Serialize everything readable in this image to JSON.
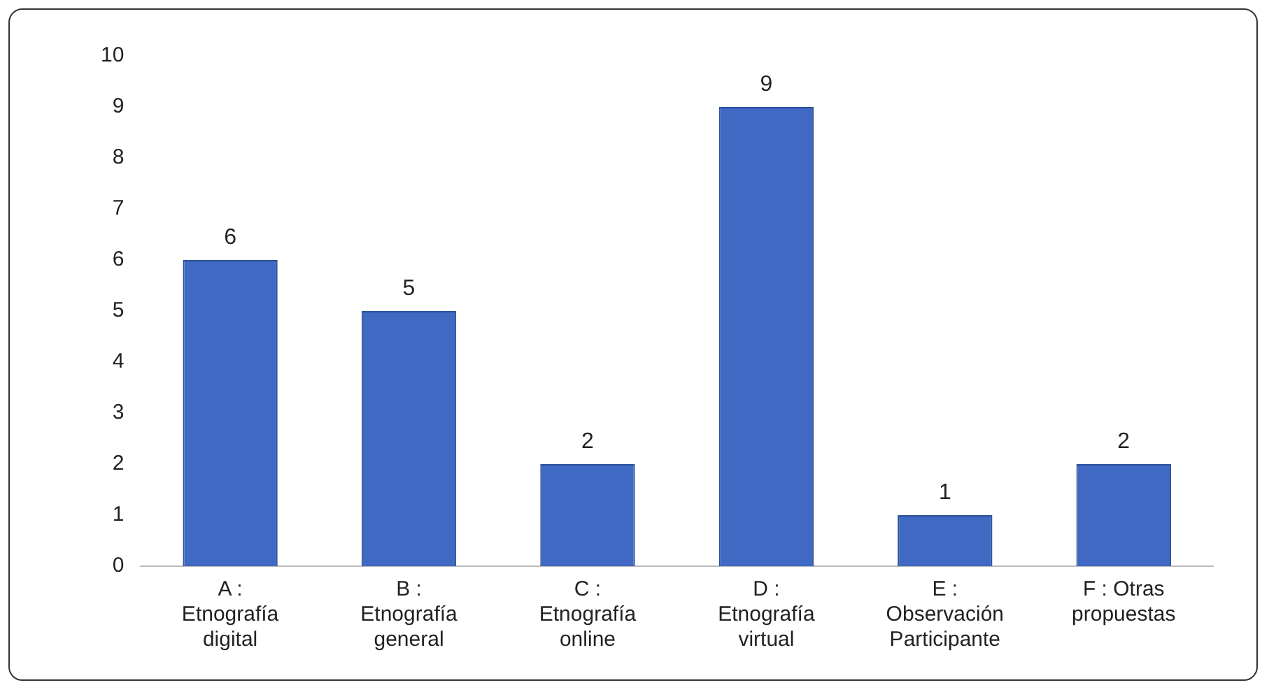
{
  "chart_data": {
    "type": "bar",
    "categories": [
      "A :\nEtnografía\ndigital",
      "B :\nEtnografía\ngeneral",
      "C :\nEtnografía\nonline",
      "D :\nEtnografía\nvirtual",
      "E :\nObservación\nParticipante",
      "F : Otras\npropuestas"
    ],
    "values": [
      6,
      5,
      2,
      9,
      1,
      2
    ],
    "color": "#3f69c2",
    "ylim": [
      0,
      10
    ],
    "yticks": [
      0,
      1,
      2,
      3,
      4,
      5,
      6,
      7,
      8,
      9,
      10
    ],
    "grid": false,
    "legend": false,
    "data_labels": true
  }
}
